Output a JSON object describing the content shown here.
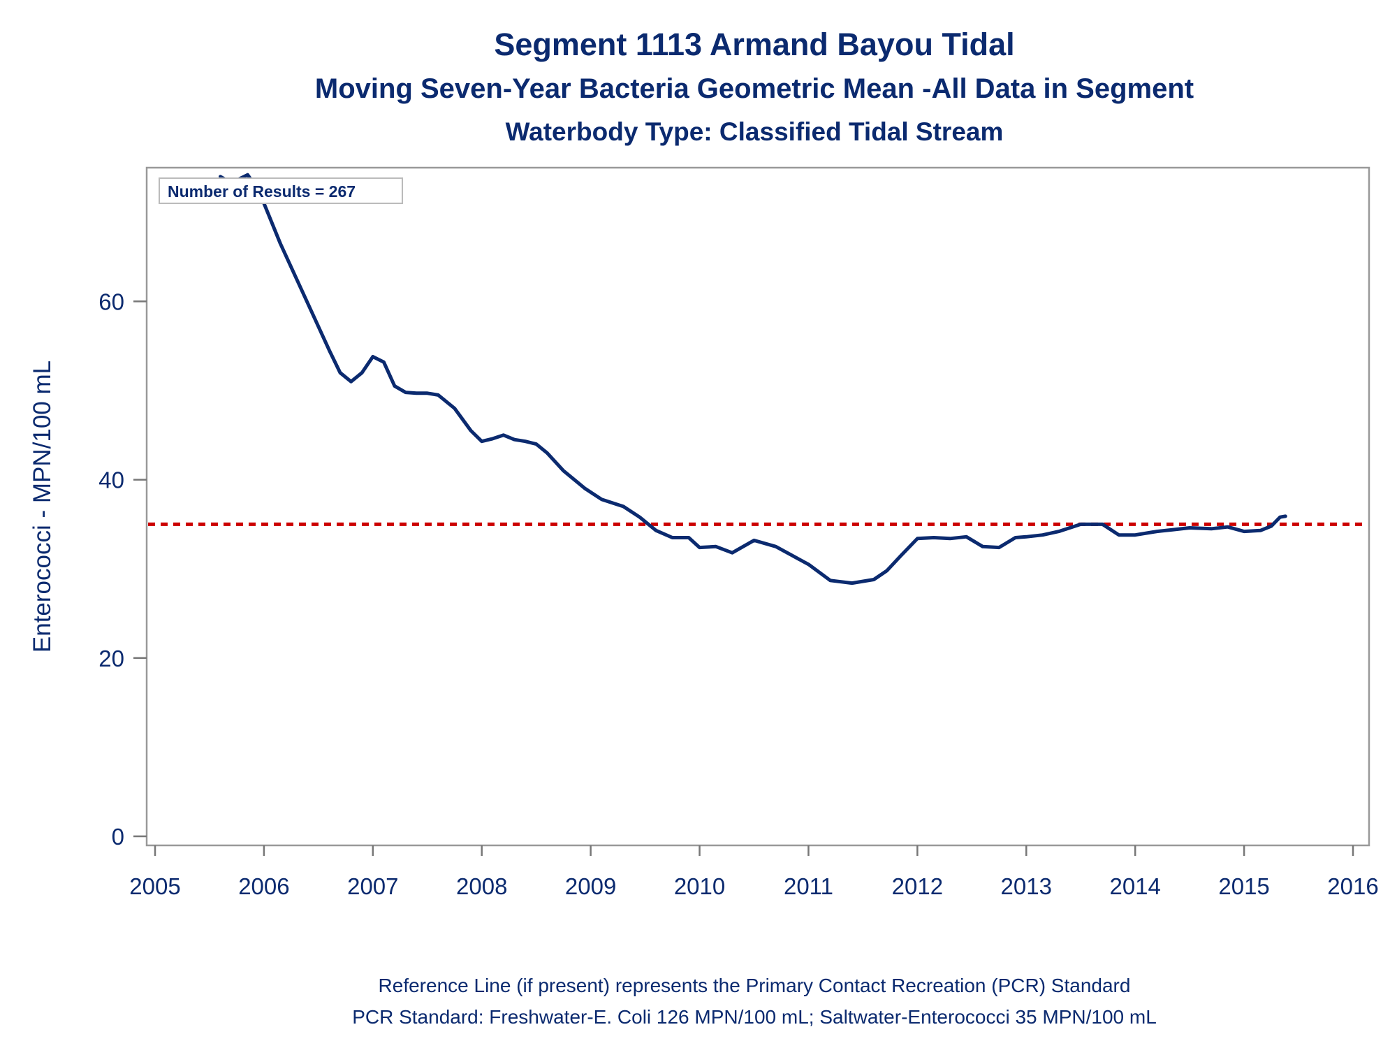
{
  "titles": {
    "line1": "Segment 1113   Armand Bayou Tidal",
    "line2": "Moving Seven-Year Bacteria Geometric Mean -All Data in Segment",
    "line3": "Waterbody Type: Classified Tidal Stream"
  },
  "footnotes": {
    "line1": "Reference Line (if present) represents the Primary Contact Recreation (PCR) Standard",
    "line2": "PCR Standard: Freshwater-E. Coli 126 MPN/100 mL; Saltwater-Enterococci 35 MPN/100 mL"
  },
  "inset_label": "Number of Results = 267",
  "colors": {
    "line": "#0b2a6f",
    "reference": "#cc0000",
    "frame": "#999999",
    "text": "#0b2a6f"
  },
  "chart_data": {
    "type": "line",
    "ylabel": "Enterococci - MPN/100 mL",
    "xlabel": "",
    "xlim": [
      2005,
      2016
    ],
    "ylim": [
      0,
      75
    ],
    "x_ticks": [
      2005,
      2006,
      2007,
      2008,
      2009,
      2010,
      2011,
      2012,
      2013,
      2014,
      2015,
      2016
    ],
    "y_ticks": [
      0,
      20,
      40,
      60
    ],
    "grid": false,
    "reference_line": {
      "y": 35,
      "style": "dotted",
      "color": "#cc0000"
    },
    "series": [
      {
        "x": [
          2005.6,
          2005.7,
          2005.85,
          2005.95,
          2006.05,
          2006.15,
          2006.3,
          2006.45,
          2006.6,
          2006.7,
          2006.8,
          2006.9,
          2007.0,
          2007.1,
          2007.2,
          2007.3,
          2007.4,
          2007.5,
          2007.6,
          2007.75,
          2007.9,
          2008.0,
          2008.1,
          2008.2,
          2008.3,
          2008.4,
          2008.5,
          2008.6,
          2008.75,
          2008.85,
          2008.95,
          2009.1,
          2009.3,
          2009.45,
          2009.6,
          2009.75,
          2009.9,
          2010.0,
          2010.15,
          2010.3,
          2010.5,
          2010.7,
          2010.85,
          2011.0,
          2011.2,
          2011.4,
          2011.6,
          2011.72,
          2011.85,
          2012.0,
          2012.15,
          2012.3,
          2012.45,
          2012.6,
          2012.75,
          2012.9,
          2013.0,
          2013.15,
          2013.3,
          2013.5,
          2013.7,
          2013.85,
          2014.0,
          2014.2,
          2014.35,
          2014.5,
          2014.7,
          2014.85,
          2015.0,
          2015.15,
          2015.25,
          2015.33,
          2015.38
        ],
        "values": [
          74.0,
          73.3,
          74.2,
          72.5,
          69.5,
          66.5,
          62.5,
          58.5,
          54.5,
          52.0,
          51.0,
          52.0,
          53.8,
          53.2,
          50.5,
          49.8,
          49.7,
          49.7,
          49.5,
          48.0,
          45.5,
          44.3,
          44.6,
          45.0,
          44.5,
          44.3,
          44.0,
          43.0,
          41.0,
          40.0,
          39.0,
          37.8,
          37.0,
          35.8,
          34.3,
          33.5,
          33.5,
          32.4,
          32.5,
          31.8,
          33.2,
          32.5,
          31.5,
          30.5,
          28.7,
          28.4,
          28.8,
          29.8,
          31.5,
          33.4,
          33.5,
          33.4,
          33.6,
          32.5,
          32.4,
          33.5,
          33.6,
          33.8,
          34.2,
          35.0,
          35.0,
          33.8,
          33.8,
          34.2,
          34.4,
          34.6,
          34.5,
          34.7,
          34.2,
          34.3,
          34.8,
          35.8,
          35.9
        ]
      }
    ]
  }
}
